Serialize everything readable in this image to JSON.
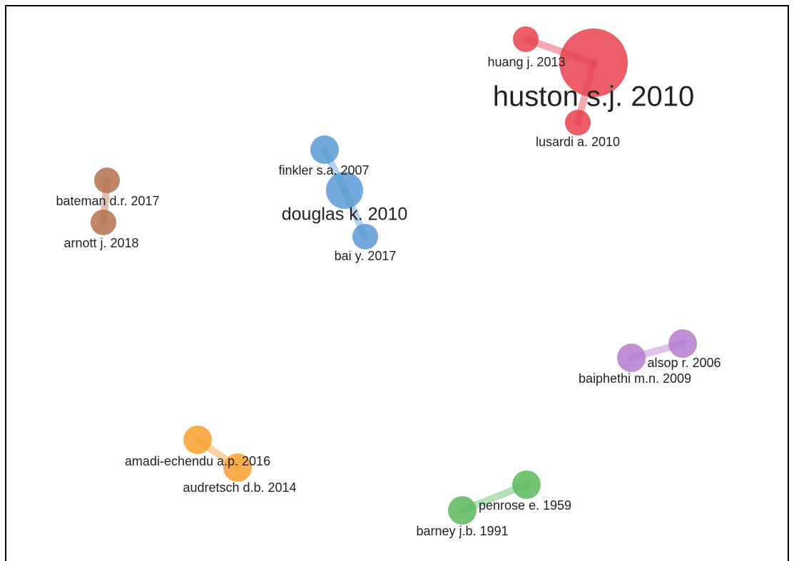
{
  "nodes": [
    {
      "label": "huang j. 2013"
    },
    {
      "label": "huston s.j. 2010"
    },
    {
      "label": "lusardi a. 2010"
    },
    {
      "label": "finkler s.a. 2007"
    },
    {
      "label": "douglas k. 2010"
    },
    {
      "label": "bai y. 2017"
    },
    {
      "label": "bateman d.r. 2017"
    },
    {
      "label": "arnott j. 2018"
    },
    {
      "label": "alsop r. 2006"
    },
    {
      "label": "baiphethi m.n. 2009"
    },
    {
      "label": "amadi-echendu a.p. 2016"
    },
    {
      "label": "audretsch d.b. 2014"
    },
    {
      "label": "penrose e. 1959"
    },
    {
      "label": "barney j.b. 1991"
    }
  ]
}
